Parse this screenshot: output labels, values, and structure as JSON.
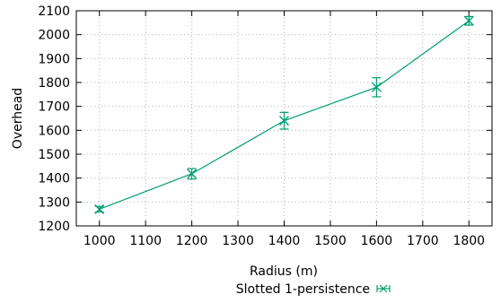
{
  "chart_data": {
    "type": "line",
    "title": "",
    "xlabel": "Radius (m)",
    "ylabel": "Overhead",
    "xlim": [
      950,
      1850
    ],
    "ylim": [
      1200,
      2100
    ],
    "xticks": [
      1000,
      1100,
      1200,
      1300,
      1400,
      1500,
      1600,
      1700,
      1800
    ],
    "yticks": [
      1200,
      1300,
      1400,
      1500,
      1600,
      1700,
      1800,
      1900,
      2000,
      2100
    ],
    "grid": true,
    "legend_position": "bottom-center",
    "series": [
      {
        "name": "Slotted 1-persistence",
        "color": "#009e73",
        "marker": "x",
        "x": [
          1000,
          1200,
          1400,
          1600,
          1800
        ],
        "y": [
          1270,
          1418,
          1640,
          1780,
          2058
        ],
        "yerr": [
          12,
          22,
          35,
          40,
          18
        ]
      }
    ]
  }
}
